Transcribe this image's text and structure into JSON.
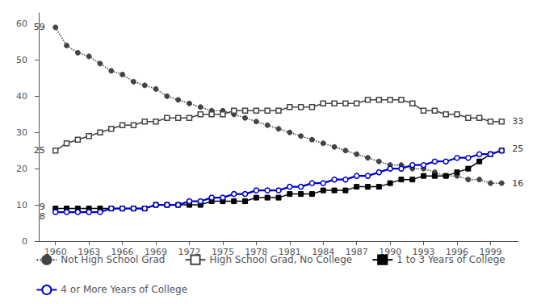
{
  "chart_data": {
    "type": "line",
    "x": [
      1960,
      1961,
      1962,
      1963,
      1964,
      1965,
      1966,
      1967,
      1968,
      1969,
      1970,
      1971,
      1972,
      1973,
      1974,
      1975,
      1976,
      1977,
      1978,
      1979,
      1980,
      1981,
      1982,
      1983,
      1984,
      1985,
      1986,
      1987,
      1988,
      1989,
      1990,
      1991,
      1992,
      1993,
      1994,
      1995,
      1996,
      1997,
      1998,
      1999,
      2000
    ],
    "series": [
      {
        "name": "Not High School Grad",
        "color": "#444444",
        "marker": "circle",
        "line_style": "dotted",
        "values": [
          59,
          54,
          52,
          51,
          49,
          47,
          46,
          44,
          43,
          42,
          40,
          39,
          38,
          37,
          36,
          36,
          35,
          34,
          33,
          32,
          31,
          30,
          29,
          28,
          27,
          26,
          25,
          24,
          23,
          22,
          21,
          21,
          20,
          20,
          19,
          18,
          18,
          17,
          17,
          16,
          16
        ]
      },
      {
        "name": "High School Grad, No College",
        "color": "#444444",
        "marker": "open square",
        "line_style": "solid",
        "values": [
          25,
          27,
          28,
          29,
          30,
          31,
          32,
          32,
          33,
          33,
          34,
          34,
          34,
          35,
          35,
          35,
          36,
          36,
          36,
          36,
          36,
          37,
          37,
          37,
          38,
          38,
          38,
          38,
          39,
          39,
          39,
          39,
          38,
          36,
          36,
          35,
          35,
          34,
          34,
          33,
          33
        ]
      },
      {
        "name": "1 to 3 Years of College",
        "color": "#000000",
        "marker": "square",
        "line_style": "solid",
        "values": [
          9,
          9,
          9,
          9,
          9,
          9,
          9,
          9,
          9,
          10,
          10,
          10,
          10,
          10,
          11,
          11,
          11,
          11,
          12,
          12,
          12,
          13,
          13,
          13,
          14,
          14,
          14,
          15,
          15,
          15,
          16,
          17,
          17,
          18,
          18,
          18,
          19,
          20,
          22,
          24,
          25
        ]
      },
      {
        "name": "4 or More Years of College",
        "color": "#0000cc",
        "marker": "open circle",
        "line_style": "solid",
        "values": [
          8,
          8,
          8,
          8,
          8,
          9,
          9,
          9,
          9,
          10,
          10,
          10,
          11,
          11,
          12,
          12,
          13,
          13,
          14,
          14,
          14,
          15,
          15,
          16,
          16,
          17,
          17,
          18,
          18,
          19,
          20,
          20,
          21,
          21,
          22,
          22,
          23,
          23,
          24,
          24,
          25
        ]
      }
    ],
    "xlim": [
      1958.5,
      2001.5
    ],
    "xticks": [
      1960,
      1963,
      1966,
      1969,
      1972,
      1975,
      1978,
      1981,
      1984,
      1987,
      1990,
      1993,
      1996,
      1999
    ],
    "ylim": [
      0,
      63
    ],
    "yticks": [
      0,
      10,
      20,
      30,
      40,
      50,
      60
    ],
    "grid": false,
    "legend": "bottom",
    "annotations": [
      {
        "text": "59",
        "x": 1959.2,
        "y": 59
      },
      {
        "text": "25",
        "x": 1959.2,
        "y": 25
      },
      {
        "text": "9",
        "x": 1959.2,
        "y": 9.5
      },
      {
        "text": "8",
        "x": 1959.2,
        "y": 8.0
      },
      {
        "text": "33",
        "x": 2000.8,
        "y": 33
      },
      {
        "text": "25",
        "x": 2000.8,
        "y": 25.5
      },
      {
        "text": "16",
        "x": 2000.8,
        "y": 16
      }
    ]
  }
}
